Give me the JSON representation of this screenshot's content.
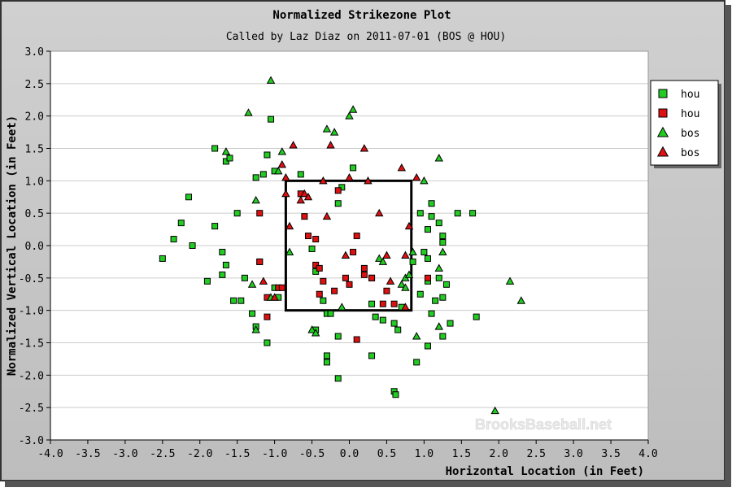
{
  "colors": {
    "frame_bg": "#cccccc",
    "plot_bg": "#ffffff",
    "grid": "#cccccc",
    "strike_zone": "#000000",
    "hou_green": "#22cc22",
    "hou_red": "#dd1111",
    "bos_green": "#22cc22",
    "bos_red": "#dd1111"
  },
  "chart_data": {
    "type": "scatter",
    "title": "Normalized Strikezone Plot",
    "subtitle": "Called by Laz Diaz on 2011-07-01 (BOS @ HOU)",
    "xlabel": "Horizontal Location (in Feet)",
    "ylabel": "Normalized Vertical Location (in Feet)",
    "xlim": [
      -4.0,
      4.0
    ],
    "ylim": [
      -3.0,
      3.0
    ],
    "x_ticks": [
      "-4.0",
      "-3.5",
      "-3.0",
      "-2.5",
      "-2.0",
      "-1.5",
      "-1.0",
      "-0.5",
      "0.0",
      "0.5",
      "1.0",
      "1.5",
      "2.0",
      "2.5",
      "3.0",
      "3.5",
      "4.0"
    ],
    "y_ticks": [
      "3.0",
      "2.5",
      "2.0",
      "1.5",
      "1.0",
      "0.5",
      "0.0",
      "-0.5",
      "-1.0",
      "-1.5",
      "-2.0",
      "-2.5",
      "-3.0"
    ],
    "grid": "horizontal",
    "legend_position": "right",
    "watermark": "BrooksBaseball.net",
    "strike_zone": {
      "x": [
        -0.85,
        0.83
      ],
      "y": [
        -1.0,
        1.0
      ]
    },
    "series": [
      {
        "name": "hou",
        "marker": "square",
        "color": "green",
        "points": [
          [
            -1.8,
            1.5
          ],
          [
            -1.65,
            1.3
          ],
          [
            -1.6,
            1.35
          ],
          [
            -1.1,
            1.4
          ],
          [
            -1.15,
            1.1
          ],
          [
            -1.25,
            1.05
          ],
          [
            -1.0,
            1.15
          ],
          [
            -1.05,
            1.95
          ],
          [
            -0.65,
            1.1
          ],
          [
            0.05,
            1.2
          ],
          [
            -2.15,
            0.75
          ],
          [
            -2.25,
            0.35
          ],
          [
            -1.8,
            0.3
          ],
          [
            -1.5,
            0.5
          ],
          [
            -2.35,
            0.1
          ],
          [
            -2.1,
            0.0
          ],
          [
            -2.5,
            -0.2
          ],
          [
            -1.9,
            -0.55
          ],
          [
            -1.7,
            -0.1
          ],
          [
            -1.65,
            -0.3
          ],
          [
            -1.7,
            -0.45
          ],
          [
            -1.55,
            -0.85
          ],
          [
            -1.45,
            -0.85
          ],
          [
            -1.3,
            -1.05
          ],
          [
            -1.25,
            -1.25
          ],
          [
            -1.1,
            -1.5
          ],
          [
            -1.4,
            -0.5
          ],
          [
            -1.0,
            -0.65
          ],
          [
            -0.95,
            -0.8
          ],
          [
            -1.2,
            -0.25
          ],
          [
            -0.5,
            -0.05
          ],
          [
            -0.45,
            -0.4
          ],
          [
            -0.35,
            -0.85
          ],
          [
            -0.3,
            -1.05
          ],
          [
            -0.25,
            -1.05
          ],
          [
            -0.45,
            -1.3
          ],
          [
            -0.3,
            -1.7
          ],
          [
            -0.3,
            -1.8
          ],
          [
            -0.15,
            -2.05
          ],
          [
            -0.15,
            -1.4
          ],
          [
            -0.15,
            0.65
          ],
          [
            -0.1,
            0.9
          ],
          [
            0.3,
            -0.5
          ],
          [
            0.3,
            -0.9
          ],
          [
            0.35,
            -1.1
          ],
          [
            0.45,
            -1.15
          ],
          [
            0.3,
            -1.7
          ],
          [
            0.6,
            -1.2
          ],
          [
            0.6,
            -2.25
          ],
          [
            0.62,
            -2.3
          ],
          [
            0.65,
            -1.3
          ],
          [
            0.7,
            -0.95
          ],
          [
            0.85,
            -0.25
          ],
          [
            0.95,
            0.5
          ],
          [
            1.0,
            -0.1
          ],
          [
            1.05,
            0.25
          ],
          [
            1.1,
            0.65
          ],
          [
            1.1,
            0.45
          ],
          [
            1.05,
            -0.55
          ],
          [
            1.1,
            -1.05
          ],
          [
            0.9,
            -1.8
          ],
          [
            1.05,
            -1.55
          ],
          [
            1.2,
            0.35
          ],
          [
            1.25,
            0.15
          ],
          [
            1.2,
            -0.5
          ],
          [
            1.25,
            -0.8
          ],
          [
            1.3,
            -0.6
          ],
          [
            1.35,
            -1.2
          ],
          [
            1.25,
            -1.4
          ],
          [
            1.45,
            0.5
          ],
          [
            1.65,
            0.5
          ],
          [
            1.7,
            -1.1
          ],
          [
            1.25,
            0.05
          ],
          [
            0.95,
            -0.75
          ],
          [
            1.05,
            -0.2
          ],
          [
            1.15,
            -0.85
          ]
        ]
      },
      {
        "name": "hou",
        "marker": "square",
        "color": "red",
        "points": [
          [
            -1.2,
            -0.25
          ],
          [
            -1.2,
            0.5
          ],
          [
            -1.1,
            -0.8
          ],
          [
            -1.1,
            -1.1
          ],
          [
            -0.95,
            -0.65
          ],
          [
            -0.9,
            -0.65
          ],
          [
            -0.65,
            0.8
          ],
          [
            -0.6,
            0.45
          ],
          [
            -0.55,
            0.15
          ],
          [
            -0.45,
            0.1
          ],
          [
            -0.45,
            -0.3
          ],
          [
            -0.35,
            -0.55
          ],
          [
            -0.2,
            -0.7
          ],
          [
            -0.15,
            0.85
          ],
          [
            0.0,
            -0.6
          ],
          [
            0.05,
            -0.1
          ],
          [
            0.1,
            0.15
          ],
          [
            -0.05,
            -0.5
          ],
          [
            0.2,
            -0.45
          ],
          [
            0.3,
            -0.5
          ],
          [
            0.45,
            -0.9
          ],
          [
            0.1,
            -1.45
          ],
          [
            -0.4,
            -0.35
          ],
          [
            0.6,
            -0.9
          ],
          [
            1.05,
            -0.5
          ],
          [
            -0.4,
            -0.75
          ],
          [
            0.2,
            -0.35
          ],
          [
            0.5,
            -0.7
          ]
        ]
      },
      {
        "name": "bos",
        "marker": "triangle",
        "color": "green",
        "points": [
          [
            -1.05,
            2.55
          ],
          [
            -1.35,
            2.05
          ],
          [
            -1.65,
            1.45
          ],
          [
            -1.25,
            0.7
          ],
          [
            -0.95,
            1.15
          ],
          [
            -0.9,
            1.45
          ],
          [
            -0.3,
            1.8
          ],
          [
            -0.2,
            1.75
          ],
          [
            0.0,
            2.0
          ],
          [
            0.05,
            2.1
          ],
          [
            -0.8,
            -0.1
          ],
          [
            -1.05,
            -0.8
          ],
          [
            -1.3,
            -0.6
          ],
          [
            -1.25,
            -1.3
          ],
          [
            -0.5,
            -1.3
          ],
          [
            -0.45,
            -1.35
          ],
          [
            -0.1,
            -0.95
          ],
          [
            0.4,
            -0.2
          ],
          [
            0.45,
            -0.25
          ],
          [
            0.7,
            -0.6
          ],
          [
            0.75,
            -0.5
          ],
          [
            0.8,
            -0.45
          ],
          [
            0.75,
            -0.65
          ],
          [
            1.0,
            1.0
          ],
          [
            1.2,
            1.35
          ],
          [
            1.2,
            -0.35
          ],
          [
            1.2,
            -1.25
          ],
          [
            1.25,
            -0.1
          ],
          [
            0.9,
            -1.4
          ],
          [
            2.15,
            -0.55
          ],
          [
            2.3,
            -0.85
          ],
          [
            1.95,
            -2.55
          ],
          [
            0.85,
            -0.1
          ]
        ]
      },
      {
        "name": "bos",
        "marker": "triangle",
        "color": "red",
        "points": [
          [
            -0.75,
            1.55
          ],
          [
            -0.9,
            1.25
          ],
          [
            -0.85,
            1.05
          ],
          [
            -0.85,
            0.8
          ],
          [
            -0.65,
            0.7
          ],
          [
            -0.6,
            0.8
          ],
          [
            -0.55,
            0.75
          ],
          [
            -0.35,
            1.0
          ],
          [
            -0.25,
            1.55
          ],
          [
            -0.3,
            0.45
          ],
          [
            0.0,
            1.05
          ],
          [
            0.2,
            1.5
          ],
          [
            0.25,
            1.0
          ],
          [
            0.4,
            0.5
          ],
          [
            0.7,
            1.2
          ],
          [
            0.9,
            1.05
          ],
          [
            0.8,
            0.3
          ],
          [
            -0.8,
            0.3
          ],
          [
            -0.05,
            -0.15
          ],
          [
            0.5,
            -0.15
          ],
          [
            0.75,
            -0.15
          ],
          [
            0.55,
            -0.55
          ],
          [
            0.75,
            -0.95
          ],
          [
            -1.15,
            -0.55
          ],
          [
            -1.0,
            -0.8
          ]
        ]
      }
    ]
  }
}
